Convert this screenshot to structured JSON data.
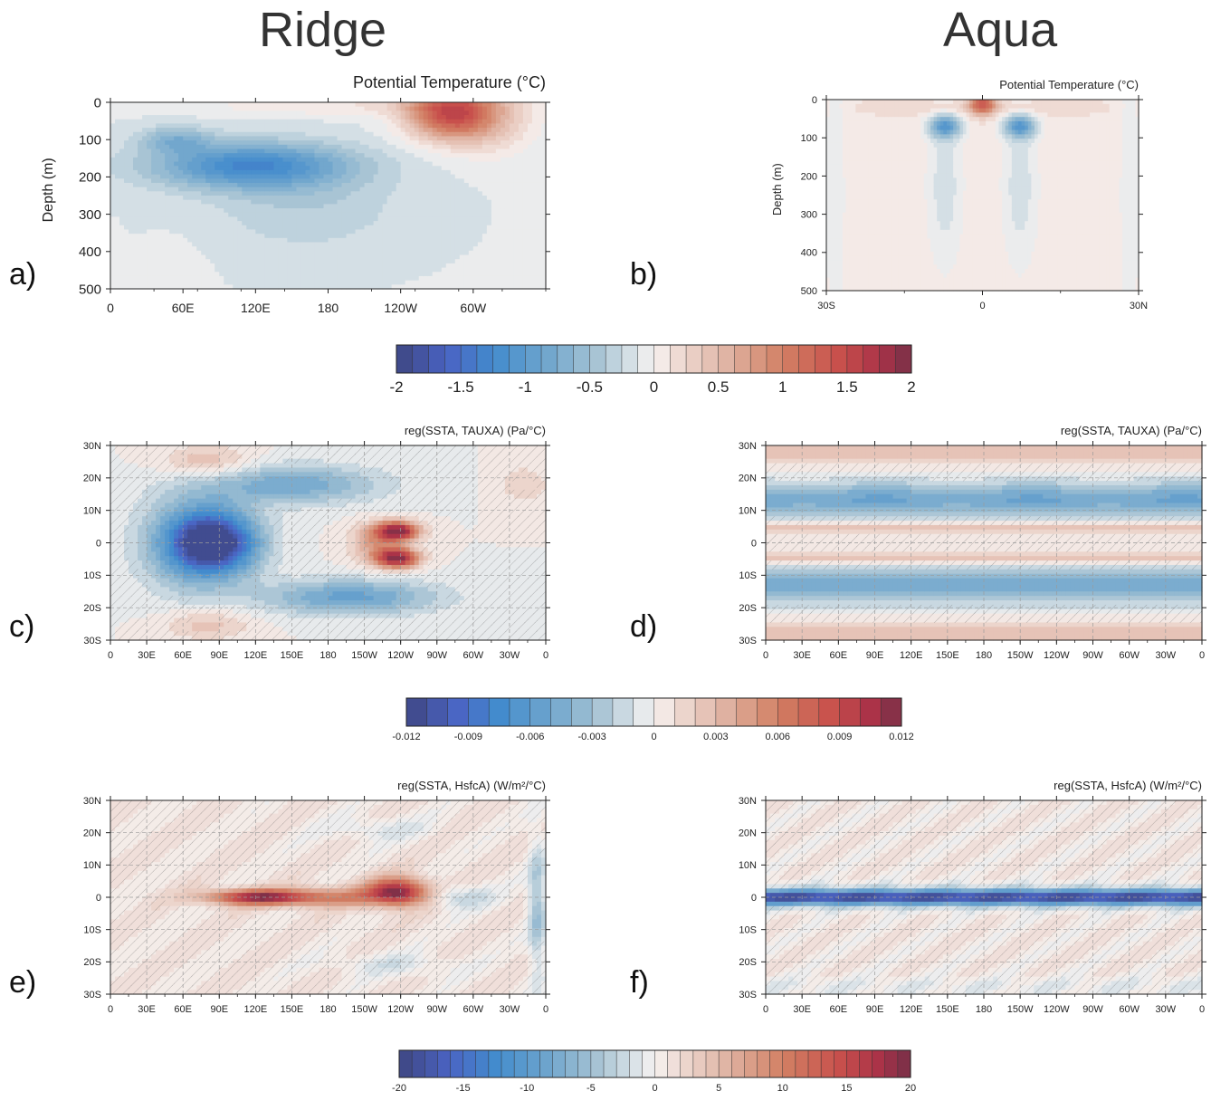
{
  "columns": {
    "left": "Ridge",
    "right": "Aqua"
  },
  "panels": [
    {
      "id": "a",
      "label": "a)",
      "title": "Potential Temperature (°C)",
      "ylabel": "Depth (m)",
      "xticks": [
        "0",
        "60E",
        "120E",
        "180",
        "120W",
        "60W"
      ],
      "yticks": [
        "0",
        "100",
        "200",
        "300",
        "400",
        "500"
      ]
    },
    {
      "id": "b",
      "label": "b)",
      "title": "Potential Temperature (°C)",
      "ylabel": "Depth (m)",
      "xticks": [
        "30S",
        "0",
        "30N"
      ],
      "yticks": [
        "0",
        "100",
        "200",
        "300",
        "400",
        "500"
      ]
    },
    {
      "id": "c",
      "label": "c)",
      "title": "reg(SSTA, TAUXA) (Pa/°C)",
      "xticks": [
        "0",
        "30E",
        "60E",
        "90E",
        "120E",
        "150E",
        "180",
        "150W",
        "120W",
        "90W",
        "60W",
        "30W",
        "0"
      ],
      "yticks": [
        "30N",
        "20N",
        "10N",
        "0",
        "10S",
        "20S",
        "30S"
      ]
    },
    {
      "id": "d",
      "label": "d)",
      "title": "reg(SSTA, TAUXA) (Pa/°C)",
      "xticks": [
        "0",
        "30E",
        "60E",
        "90E",
        "120E",
        "150E",
        "180",
        "150W",
        "120W",
        "90W",
        "60W",
        "30W",
        "0"
      ],
      "yticks": [
        "30N",
        "20N",
        "10N",
        "0",
        "10S",
        "20S",
        "30S"
      ]
    },
    {
      "id": "e",
      "label": "e)",
      "title": "reg(SSTA, HsfcA) (W/m²/°C)",
      "xticks": [
        "0",
        "30E",
        "60E",
        "90E",
        "120E",
        "150E",
        "180",
        "150W",
        "120W",
        "90W",
        "60W",
        "30W",
        "0"
      ],
      "yticks": [
        "30N",
        "20N",
        "10N",
        "0",
        "10S",
        "20S",
        "30S"
      ]
    },
    {
      "id": "f",
      "label": "f)",
      "title": "reg(SSTA, HsfcA) (W/m²/°C)",
      "xticks": [
        "0",
        "30E",
        "60E",
        "90E",
        "120E",
        "150E",
        "180",
        "150W",
        "120W",
        "90W",
        "60W",
        "30W",
        "0"
      ],
      "yticks": [
        "30N",
        "20N",
        "10N",
        "0",
        "10S",
        "20S",
        "30S"
      ]
    }
  ],
  "colorbars": [
    {
      "id": "temp",
      "min": -2,
      "max": 2,
      "levels": 32,
      "labels": [
        "-2",
        "-1.5",
        "-1",
        "-0.5",
        "0",
        "0.5",
        "1",
        "1.5",
        "2"
      ]
    },
    {
      "id": "taux",
      "min": -0.012,
      "max": 0.012,
      "levels": 24,
      "labels": [
        "-0.012",
        "-0.009",
        "-0.006",
        "-0.003",
        "0",
        "0.003",
        "0.006",
        "0.009",
        "0.012"
      ]
    },
    {
      "id": "hsfc",
      "min": -20,
      "max": 20,
      "levels": 40,
      "labels": [
        "-20",
        "-15",
        "-10",
        "-5",
        "0",
        "5",
        "10",
        "15",
        "20"
      ]
    }
  ],
  "chart_data": [
    {
      "type": "heatmap",
      "panel": "a",
      "variable": "Potential Temperature (°C)",
      "x": "longitude 0 to 360",
      "y": "depth (m)",
      "ylim": [
        0,
        500
      ],
      "features": [
        {
          "where": "~90E-180, 60-220 m",
          "value": -1.0
        },
        {
          "where": "~90W, 0-120 m",
          "value": 1.3
        },
        {
          "where": "background",
          "value": -0.1
        }
      ]
    },
    {
      "type": "heatmap",
      "panel": "b",
      "variable": "Potential Temperature (°C)",
      "x": "latitude 30S to 30N",
      "y": "depth (m)",
      "ylim": [
        0,
        500
      ],
      "features": [
        {
          "where": "0, 0-30 m",
          "value": 1.1
        },
        {
          "where": "6S and 6N, 80-100 m",
          "value": -0.9
        }
      ]
    },
    {
      "type": "heatmap",
      "panel": "c",
      "variable": "reg(SSTA, TAUXA) (Pa/°C)",
      "x": "longitude 0 to 360",
      "y": "latitude 30S to 30N",
      "features": [
        {
          "where": "~85E, 0",
          "value": -0.011
        },
        {
          "where": "~120W, 3N and 3S",
          "value": 0.011
        },
        {
          "where": "~130W, 25S",
          "value": -0.006
        },
        {
          "where": "~60E, 25N",
          "value": 0.003
        }
      ]
    },
    {
      "type": "heatmap",
      "panel": "d",
      "variable": "reg(SSTA, TAUXA) (Pa/°C)",
      "x": "longitude 0 to 360",
      "y": "latitude 30S to 30N",
      "features": [
        {
          "where": "zonal band 10-20N and 10-20S",
          "value": -0.004
        },
        {
          "where": "band ~5N/5S",
          "value": 0.003
        },
        {
          "where": "band 25-30N/S",
          "value": 0.003
        }
      ]
    },
    {
      "type": "heatmap",
      "panel": "e",
      "variable": "reg(SSTA, HsfcA) (W/m²/°C)",
      "x": "longitude 0 to 360",
      "y": "latitude 30S to 30N",
      "features": [
        {
          "where": "~110E, 0",
          "value": 17
        },
        {
          "where": "~125W, 0",
          "value": 18
        },
        {
          "where": "~5W, 0",
          "value": -8
        }
      ]
    },
    {
      "type": "heatmap",
      "panel": "f",
      "variable": "reg(SSTA, HsfcA) (W/m²/°C)",
      "x": "longitude 0 to 360",
      "y": "latitude 30S to 30N",
      "features": [
        {
          "where": "equatorial band 3S-3N",
          "value": -14
        },
        {
          "where": "off-equator",
          "value": 1
        }
      ]
    }
  ]
}
